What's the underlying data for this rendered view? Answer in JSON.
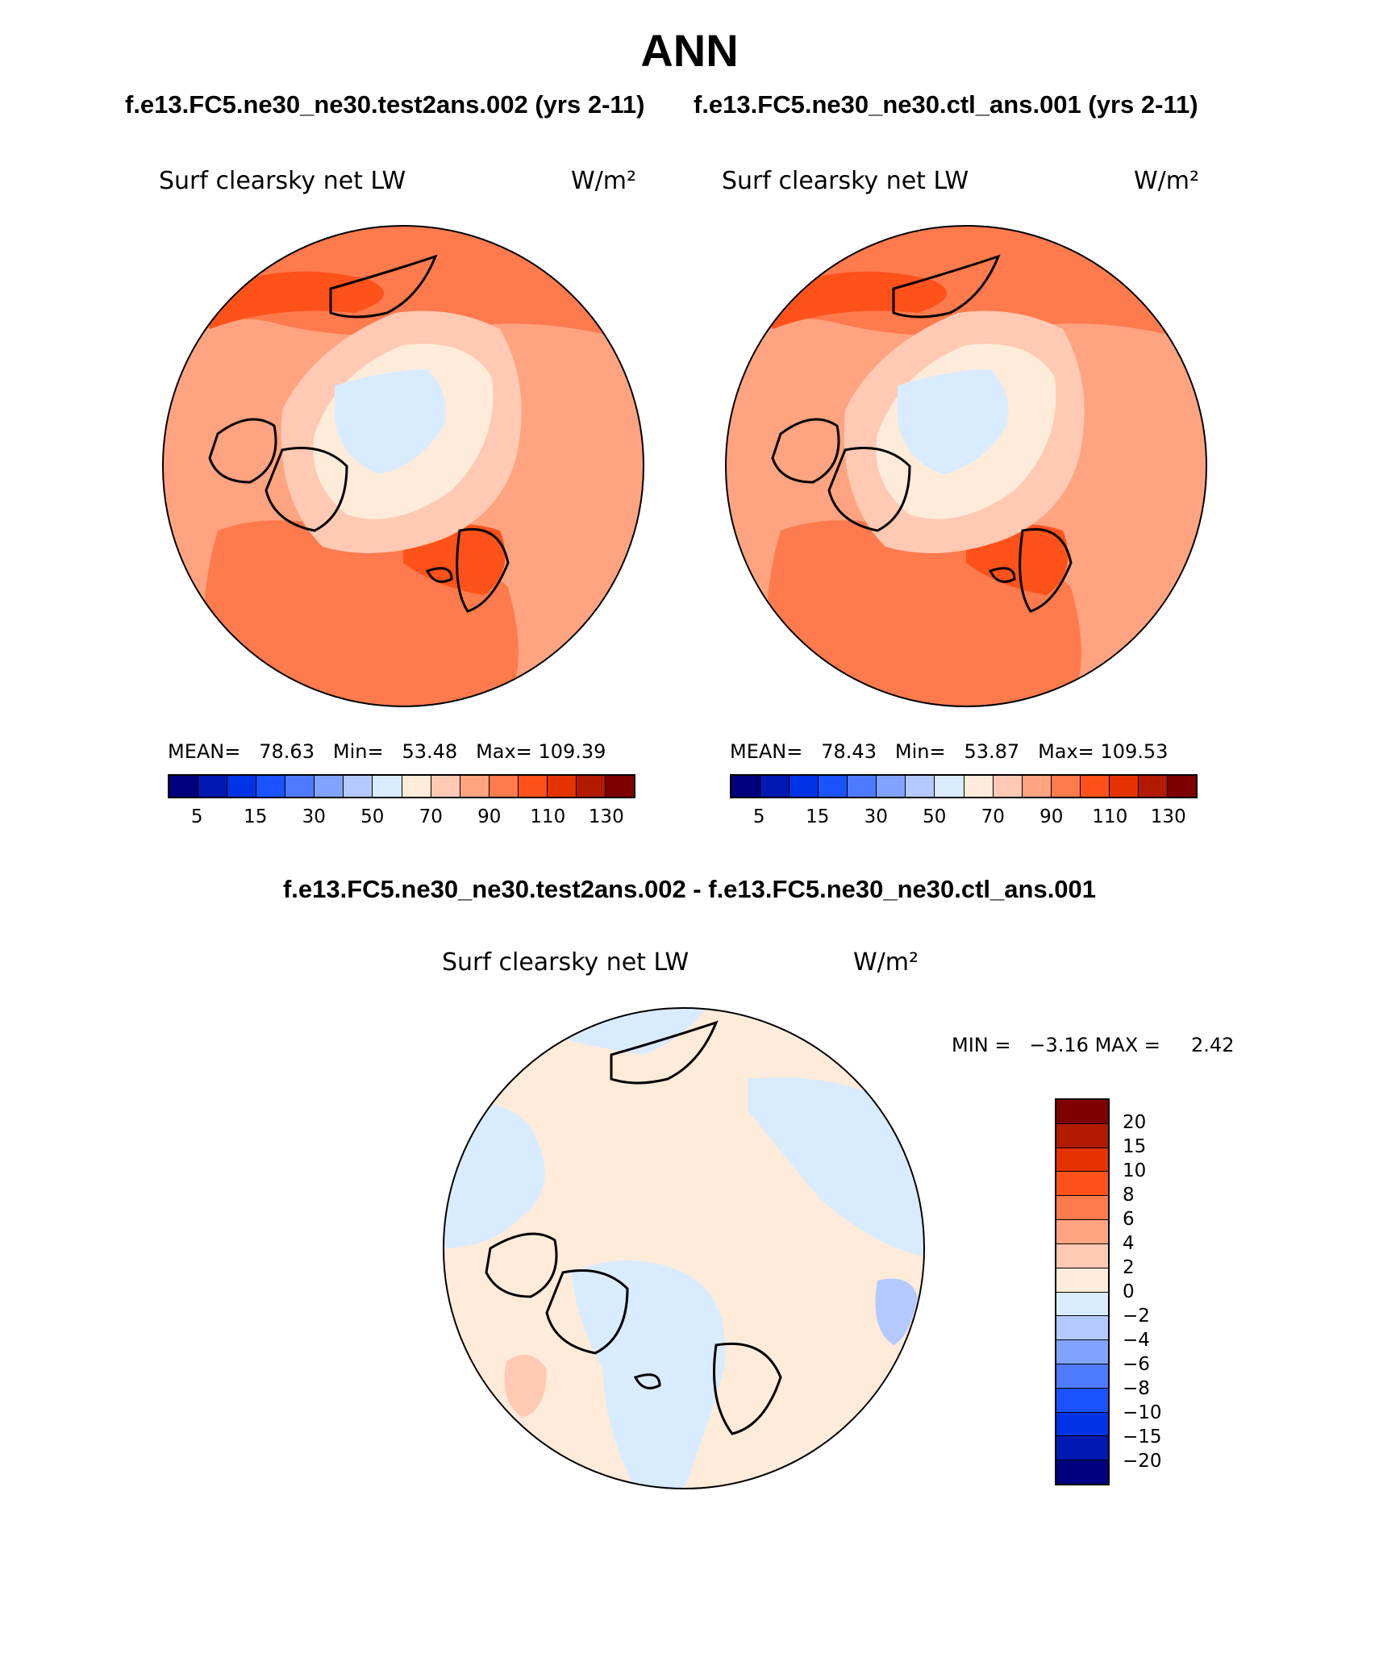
{
  "title": "ANN",
  "case_test": "f.e13.FC5.ne30_ne30.test2ans.002 (yrs 2-11)",
  "case_ctl": "f.e13.FC5.ne30_ne30.ctl_ans.001 (yrs 2-11)",
  "diff_title": "f.e13.FC5.ne30_ne30.test2ans.002 - f.e13.FC5.ne30_ne30.ctl_ans.001",
  "panels": [
    {
      "variable": "Surf clearsky net LW",
      "units": "W/m²",
      "mean_label": "MEAN=",
      "mean": "78.63",
      "min_label": "Min=",
      "min": "53.48",
      "max_label": "Max=",
      "max": "109.39"
    },
    {
      "variable": "Surf clearsky net LW",
      "units": "W/m²",
      "mean_label": "MEAN=",
      "mean": "78.43",
      "min_label": "Min=",
      "min": "53.87",
      "max_label": "Max=",
      "max": "109.53"
    }
  ],
  "diff_panel": {
    "variable": "Surf clearsky net LW",
    "units": "W/m²",
    "min_label": "MIN =",
    "min": "−3.16",
    "max_label": "MAX =",
    "max": "2.42"
  },
  "colorbar_main": {
    "colors": [
      "#00007f",
      "#0019b2",
      "#0033e5",
      "#1a52ff",
      "#4d7aff",
      "#80a3ff",
      "#b3c9ff",
      "#d9ebff",
      "#ffebd9",
      "#ffc9b3",
      "#ffa380",
      "#ff7a4d",
      "#ff521a",
      "#e53300",
      "#b21a00",
      "#7f0000"
    ],
    "tick_labels": [
      "5",
      "15",
      "30",
      "50",
      "70",
      "90",
      "110",
      "130"
    ]
  },
  "colorbar_diff": {
    "colors": [
      "#7f0000",
      "#b21a00",
      "#e53300",
      "#ff521a",
      "#ff7a4d",
      "#ffa380",
      "#ffc9b3",
      "#ffebd9",
      "#d9ebff",
      "#b3c9ff",
      "#80a3ff",
      "#4d7aff",
      "#1a52ff",
      "#0033e5",
      "#0019b2",
      "#00007f"
    ],
    "tick_labels": [
      "20",
      "15",
      "10",
      "8",
      "6",
      "4",
      "2",
      "0",
      "−2",
      "−4",
      "−6",
      "−8",
      "−10",
      "−15",
      "−20"
    ]
  }
}
